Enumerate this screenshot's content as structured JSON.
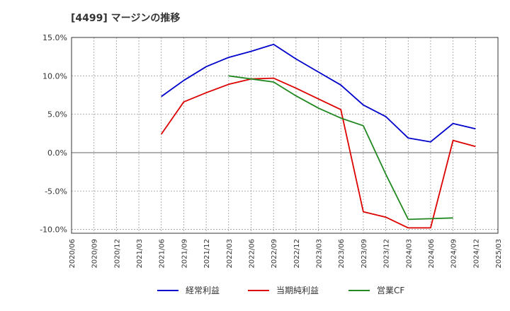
{
  "chart_data": {
    "type": "line",
    "title": "[4499]  マージンの推移",
    "xlabel": "",
    "ylabel": "",
    "ylim": [
      -10.5,
      15
    ],
    "yticks": [
      15,
      10,
      5,
      0,
      -5,
      -10
    ],
    "ytick_labels": [
      "15.0%",
      "10.0%",
      "5.0%",
      "0.0%",
      "-5.0%",
      "-10.0%"
    ],
    "categories": [
      "2020/06",
      "2020/09",
      "2020/12",
      "2021/03",
      "2021/06",
      "2021/09",
      "2021/12",
      "2022/03",
      "2022/06",
      "2022/09",
      "2022/12",
      "2023/03",
      "2023/06",
      "2023/09",
      "2023/12",
      "2024/03",
      "2024/06",
      "2024/09",
      "2024/12",
      "2025/03"
    ],
    "grid": true,
    "legend_position": "bottom",
    "series": [
      {
        "name": "経常利益",
        "color": "#0000cc",
        "values": [
          null,
          null,
          null,
          null,
          7.3,
          9.4,
          11.2,
          12.4,
          13.2,
          14.1,
          12.2,
          10.5,
          8.8,
          6.2,
          4.7,
          1.9,
          1.4,
          3.8,
          3.1,
          null
        ]
      },
      {
        "name": "当期純利益",
        "color": "#dd0000",
        "values": [
          null,
          null,
          null,
          null,
          2.4,
          6.6,
          7.8,
          8.9,
          9.6,
          9.7,
          8.4,
          7.0,
          5.6,
          -7.7,
          -8.4,
          -9.8,
          -9.8,
          1.6,
          0.8,
          null
        ]
      },
      {
        "name": "営業CF",
        "color": "#228822",
        "values": [
          null,
          null,
          null,
          null,
          null,
          null,
          null,
          10.0,
          9.6,
          9.2,
          7.4,
          5.8,
          4.5,
          3.5,
          -2.8,
          -8.7,
          -8.6,
          -8.5,
          null,
          null
        ]
      }
    ]
  }
}
